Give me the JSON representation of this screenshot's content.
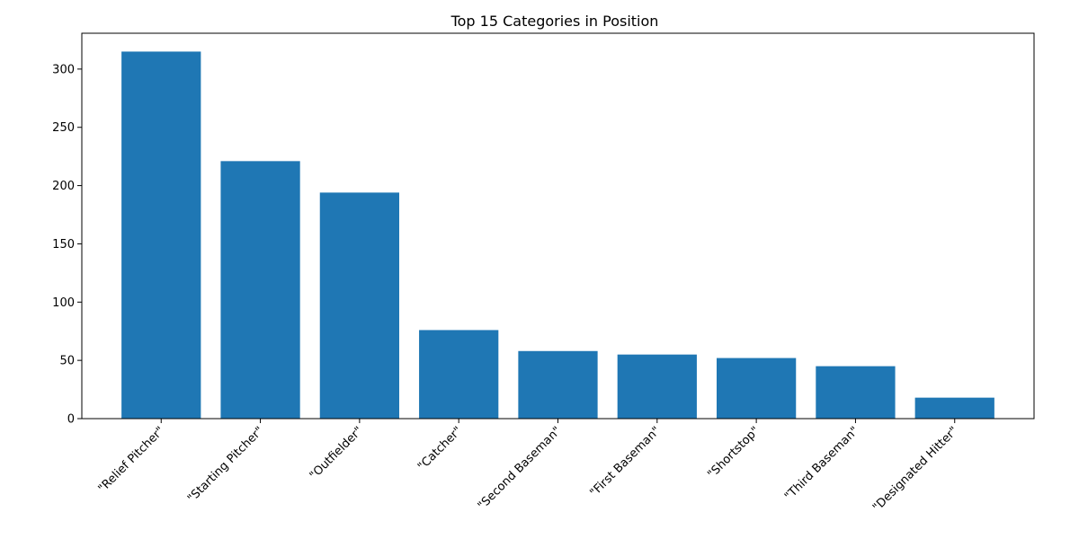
{
  "chart_data": {
    "type": "bar",
    "title": "Top 15 Categories in Position",
    "xlabel": "",
    "ylabel": "",
    "categories": [
      "\"Relief Pitcher\"",
      "\"Starting Pitcher\"",
      "\"Outfielder\"",
      "\"Catcher\"",
      "\"Second Baseman\"",
      "\"First Baseman\"",
      "\"Shortstop\"",
      "\"Third Baseman\"",
      "\"Designated Hitter\""
    ],
    "values": [
      315,
      221,
      194,
      76,
      58,
      55,
      52,
      45,
      18
    ],
    "ylim": [
      0,
      330.75
    ],
    "yticks": [
      0,
      50,
      100,
      150,
      200,
      250,
      300
    ],
    "bar_color": "#1f77b4",
    "grid": false,
    "legend": "none"
  }
}
